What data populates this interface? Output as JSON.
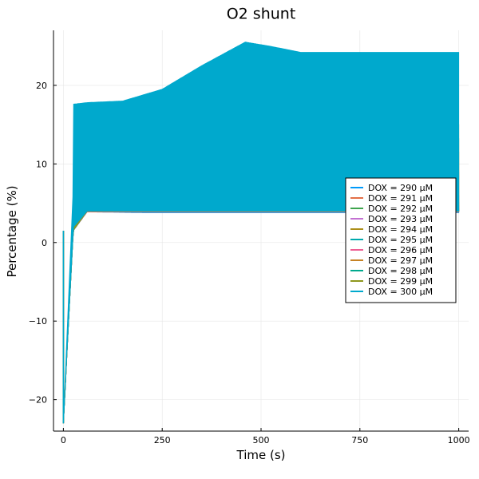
{
  "chart_data": {
    "type": "line",
    "title": "O2 shunt",
    "xlabel": "Time (s)",
    "ylabel": "Percentage (%)",
    "xlim": [
      -25,
      1025
    ],
    "ylim": [
      -24,
      27
    ],
    "xticks": [
      0,
      250,
      500,
      750,
      1000
    ],
    "yticks": [
      -20,
      -10,
      0,
      10,
      20
    ],
    "grid": true,
    "legend_position": "right",
    "series": [
      {
        "name": "DOX = 290 μM",
        "color": "#009AFA",
        "x": [
          0,
          25,
          60,
          200,
          400,
          600,
          800,
          1000
        ],
        "lower": [
          -23,
          1.5,
          3.9,
          3.8,
          3.8,
          3.8,
          3.8,
          3.8
        ],
        "upper": [
          -23,
          2.5,
          4.0,
          4.0,
          4.0,
          4.0,
          4.0,
          4.0
        ]
      },
      {
        "name": "DOX = 291 μM",
        "color": "#E36F47",
        "x": [
          0,
          25,
          60,
          200,
          400,
          600,
          800,
          1000
        ],
        "lower": [
          -23,
          1.5,
          3.9,
          3.9,
          3.9,
          3.9,
          3.9,
          3.9
        ],
        "upper": [
          -23,
          2.6,
          4.1,
          4.1,
          4.1,
          4.1,
          4.1,
          4.1
        ]
      },
      {
        "name": "DOX = 292 μM",
        "color": "#3EA44E",
        "x": [
          0,
          25,
          60,
          200,
          400,
          600,
          800,
          1000
        ],
        "lower": [
          -23,
          1.5,
          4.0,
          4.0,
          4.0,
          4.0,
          4.0,
          4.0
        ],
        "upper": [
          -23,
          2.7,
          4.3,
          4.3,
          4.3,
          4.3,
          4.3,
          4.3
        ]
      },
      {
        "name": "DOX = 293 μM",
        "color": "#C371D2",
        "x": [
          0,
          25,
          60,
          200,
          400,
          600,
          800,
          1000
        ],
        "lower": [
          -23,
          1.6,
          4.0,
          4.1,
          4.1,
          4.1,
          4.1,
          4.1
        ],
        "upper": [
          -23,
          2.8,
          4.4,
          4.5,
          4.6,
          4.6,
          4.7,
          4.7
        ]
      },
      {
        "name": "DOX = 294 μM",
        "color": "#AC8E18",
        "x": [
          0,
          25,
          60,
          200,
          400,
          600,
          800,
          1000
        ],
        "lower": [
          -23,
          1.6,
          4.0,
          4.0,
          4.0,
          4.0,
          4.0,
          4.0
        ],
        "upper": [
          -23,
          2.8,
          4.5,
          4.7,
          4.9,
          5.0,
          5.1,
          5.1
        ]
      },
      {
        "name": "DOX = 295 μM",
        "color": "#00A9AD",
        "x": [
          0,
          25,
          60,
          200,
          400,
          600,
          800,
          1000
        ],
        "lower": [
          -23,
          1.6,
          4.0,
          4.0,
          4.0,
          4.0,
          4.0,
          4.0
        ],
        "upper": [
          -23,
          2.9,
          4.6,
          5.0,
          5.4,
          5.7,
          5.9,
          6.0
        ]
      },
      {
        "name": "DOX = 296 μM",
        "color": "#ED5E93",
        "x": [
          0,
          25,
          60,
          200,
          400,
          600,
          700,
          800,
          1000
        ],
        "lower": [
          -23,
          1.6,
          4.0,
          4.0,
          4.0,
          4.0,
          4.0,
          4.0,
          4.0
        ],
        "upper": [
          -23,
          3.0,
          4.7,
          5.3,
          6.2,
          7.3,
          8.0,
          8.6,
          8.9
        ]
      },
      {
        "name": "DOX = 297 μM",
        "color": "#C68225",
        "x": [
          0,
          25,
          60,
          200,
          400,
          550,
          600,
          800,
          1000
        ],
        "lower": [
          -23,
          1.6,
          4.0,
          4.0,
          4.0,
          4.0,
          4.0,
          4.0,
          4.0
        ],
        "upper": [
          -23,
          3.0,
          4.8,
          5.8,
          8.0,
          10.5,
          11.3,
          11.5,
          11.5
        ]
      },
      {
        "name": "DOX = 298 μM",
        "color": "#00A98D",
        "x": [
          0,
          25,
          60,
          200,
          400,
          500,
          600,
          800,
          1000
        ],
        "lower": [
          -23,
          1.6,
          4.0,
          4.0,
          4.0,
          4.0,
          4.0,
          4.0,
          4.0
        ],
        "upper": [
          -23,
          3.1,
          4.9,
          6.6,
          10.5,
          12.5,
          13.5,
          13.2,
          13.2
        ]
      },
      {
        "name": "DOX = 299 μM",
        "color": "#8E971D",
        "x": [
          0,
          25,
          60,
          200,
          350,
          460,
          550,
          700,
          1000
        ],
        "lower": [
          -23,
          1.6,
          4.0,
          4.0,
          4.0,
          4.0,
          4.0,
          4.0,
          4.0
        ],
        "upper": [
          -23,
          3.2,
          5.0,
          7.5,
          11.5,
          16.5,
          15.0,
          15.0,
          15.0
        ]
      },
      {
        "name": "DOX = 300 μM",
        "color": "#00A9CD",
        "x": [
          0,
          25,
          26,
          60,
          150,
          250,
          350,
          460,
          520,
          600,
          1000
        ],
        "lower": [
          -23,
          1.6,
          2.0,
          4.0,
          4.0,
          4.0,
          4.0,
          4.0,
          4.0,
          4.0,
          4.0
        ],
        "upper": [
          -23,
          7.0,
          17.6,
          17.8,
          18.0,
          19.5,
          22.5,
          25.5,
          25.0,
          24.2,
          24.2
        ]
      }
    ]
  }
}
